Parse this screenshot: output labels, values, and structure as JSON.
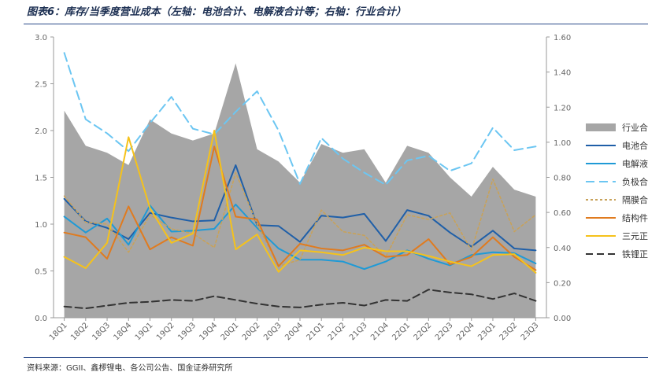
{
  "title": "图表6：库存/当季度营业成本（左轴：电池合计、电解液合计等；右轴：行业合计）",
  "source": "资料来源：GGII、鑫椤锂电、各公司公告、国金证券研究所",
  "chart_data": {
    "type": "line",
    "categories": [
      "18Q1",
      "18Q2",
      "18Q3",
      "18Q4",
      "19Q1",
      "19Q2",
      "19Q3",
      "19Q4",
      "20Q1",
      "20Q2",
      "20Q3",
      "20Q4",
      "21Q1",
      "21Q2",
      "21Q3",
      "21Q4",
      "22Q1",
      "22Q2",
      "22Q3",
      "22Q4",
      "23Q1",
      "23Q2",
      "23Q3"
    ],
    "y_left": {
      "min": 0,
      "max": 3.0,
      "ticks": [
        "0.0",
        "0.5",
        "1.0",
        "1.5",
        "2.0",
        "2.5",
        "3.0"
      ]
    },
    "y_right": {
      "min": 0,
      "max": 1.6,
      "ticks": [
        "0.00",
        "0.20",
        "0.40",
        "0.60",
        "0.80",
        "1.00",
        "1.20",
        "1.40",
        "1.60"
      ]
    },
    "grid": false,
    "legend": "right",
    "series": [
      {
        "name": "行业合计",
        "style": "area",
        "axis": "right",
        "color": "#a6a6a6",
        "values": [
          1.18,
          0.98,
          0.94,
          0.87,
          1.13,
          1.05,
          1.01,
          1.05,
          1.45,
          0.96,
          0.89,
          0.77,
          0.99,
          0.94,
          0.96,
          0.77,
          0.98,
          0.94,
          0.8,
          0.69,
          0.86,
          0.73,
          0.69
        ]
      },
      {
        "name": "电池合计",
        "style": "solid",
        "axis": "left",
        "color": "#1f5fa8",
        "values": [
          1.27,
          1.03,
          0.96,
          0.84,
          1.12,
          1.07,
          1.03,
          1.04,
          1.63,
          0.99,
          0.98,
          0.81,
          1.09,
          1.07,
          1.11,
          0.82,
          1.15,
          1.09,
          0.91,
          0.76,
          0.93,
          0.74,
          0.72
        ]
      },
      {
        "name": "电解液合计",
        "style": "solid",
        "axis": "left",
        "color": "#1f9ad6",
        "values": [
          1.08,
          0.91,
          1.06,
          0.78,
          1.2,
          0.92,
          0.93,
          0.95,
          1.21,
          0.96,
          0.74,
          0.62,
          0.62,
          0.6,
          0.52,
          0.6,
          0.72,
          0.63,
          0.56,
          0.67,
          0.7,
          0.69,
          0.58
        ]
      },
      {
        "name": "负极合计",
        "style": "dash",
        "axis": "left",
        "color": "#6cc6f2",
        "values": [
          2.83,
          2.12,
          1.97,
          1.78,
          2.08,
          2.36,
          2.02,
          1.96,
          2.2,
          2.42,
          2.0,
          1.43,
          1.92,
          1.7,
          1.55,
          1.42,
          1.68,
          1.73,
          1.57,
          1.65,
          2.03,
          1.79,
          1.83
        ]
      },
      {
        "name": "隔膜合计",
        "style": "dot",
        "axis": "left",
        "color": "#c8a25a",
        "values": [
          1.3,
          1.02,
          1.0,
          0.7,
          1.1,
          0.95,
          0.9,
          0.75,
          1.55,
          1.0,
          0.55,
          0.62,
          1.15,
          0.92,
          0.88,
          0.65,
          1.1,
          1.05,
          1.12,
          0.72,
          1.48,
          0.92,
          1.1
        ]
      },
      {
        "name": "结构件合计",
        "style": "solid",
        "axis": "left",
        "color": "#e07b1f",
        "values": [
          0.91,
          0.86,
          0.63,
          1.19,
          0.73,
          0.86,
          0.77,
          1.83,
          1.08,
          1.05,
          0.55,
          0.79,
          0.74,
          0.72,
          0.78,
          0.65,
          0.67,
          0.84,
          0.57,
          0.65,
          0.86,
          0.65,
          0.51
        ]
      },
      {
        "name": "三元正极合计",
        "style": "solid",
        "axis": "left",
        "color": "#f5c21b",
        "values": [
          0.65,
          0.53,
          0.8,
          1.93,
          1.17,
          0.8,
          0.9,
          2.0,
          0.73,
          0.89,
          0.49,
          0.72,
          0.7,
          0.67,
          0.75,
          0.71,
          0.71,
          0.66,
          0.6,
          0.55,
          0.67,
          0.68,
          0.48
        ]
      },
      {
        "name": "铁锂正极合计",
        "style": "dash-long",
        "axis": "left",
        "color": "#333333",
        "values": [
          0.12,
          0.1,
          0.13,
          0.16,
          0.17,
          0.19,
          0.18,
          0.23,
          0.19,
          0.15,
          0.12,
          0.11,
          0.14,
          0.16,
          0.13,
          0.19,
          0.18,
          0.3,
          0.27,
          0.25,
          0.2,
          0.26,
          0.18
        ]
      }
    ]
  }
}
